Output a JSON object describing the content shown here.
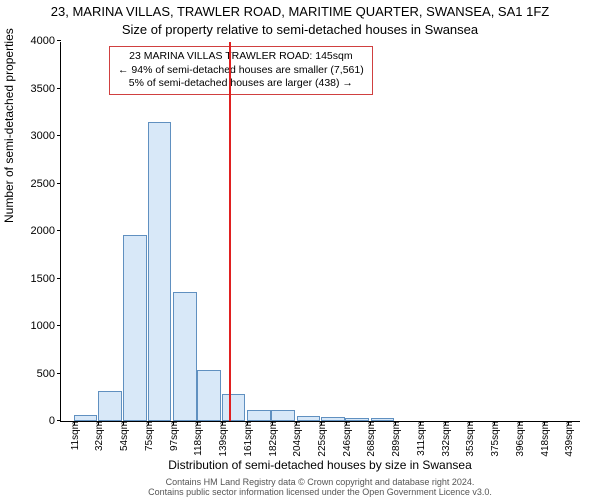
{
  "titles": {
    "line1": "23, MARINA VILLAS, TRAWLER ROAD, MARITIME QUARTER, SWANSEA, SA1 1FZ",
    "line2": "Size of property relative to semi-detached houses in Swansea"
  },
  "infobox": {
    "line1": "23 MARINA VILLAS TRAWLER ROAD: 145sqm",
    "line2": "← 94% of semi-detached houses are smaller (7,561)",
    "line3": "5% of semi-detached houses are larger (438) →",
    "border_color": "#d04040",
    "fontsize": 10.5
  },
  "chart": {
    "type": "histogram",
    "ylabel": "Number of semi-detached properties",
    "xlabel": "Distribution of semi-detached houses by size in Swansea",
    "ylim": [
      0,
      4000
    ],
    "ytick_step": 500,
    "yticks": [
      0,
      500,
      1000,
      1500,
      2000,
      2500,
      3000,
      3500,
      4000
    ],
    "xlim": [
      0,
      450
    ],
    "xtick_start": 11,
    "xtick_step": 21.4,
    "xtick_count": 21,
    "xtick_unit": "sqm",
    "bin_width": 21.4,
    "bar_fill": "#d8e8f8",
    "bar_stroke": "#6090c0",
    "bars": [
      {
        "x": 11,
        "count": 60
      },
      {
        "x": 32,
        "count": 320
      },
      {
        "x": 54,
        "count": 1960
      },
      {
        "x": 75,
        "count": 3150
      },
      {
        "x": 97,
        "count": 1360
      },
      {
        "x": 118,
        "count": 540
      },
      {
        "x": 139,
        "count": 280
      },
      {
        "x": 161,
        "count": 120
      },
      {
        "x": 182,
        "count": 120
      },
      {
        "x": 204,
        "count": 55
      },
      {
        "x": 225,
        "count": 45
      },
      {
        "x": 246,
        "count": 35
      },
      {
        "x": 268,
        "count": 30
      },
      {
        "x": 289,
        "count": 0
      },
      {
        "x": 311,
        "count": 0
      },
      {
        "x": 332,
        "count": 0
      },
      {
        "x": 353,
        "count": 0
      },
      {
        "x": 375,
        "count": 0
      },
      {
        "x": 396,
        "count": 0
      },
      {
        "x": 418,
        "count": 0
      },
      {
        "x": 439,
        "count": 0
      }
    ],
    "marker": {
      "x": 145,
      "color": "#e02020",
      "width": 2
    },
    "plot_bg": "#ffffff",
    "axis_color": "#000000",
    "label_fontsize": 12,
    "tick_fontsize": 10
  },
  "attribution": {
    "line1": "Contains HM Land Registry data © Crown copyright and database right 2024.",
    "line2": "Contains public sector information licensed under the Open Government Licence v3.0."
  }
}
